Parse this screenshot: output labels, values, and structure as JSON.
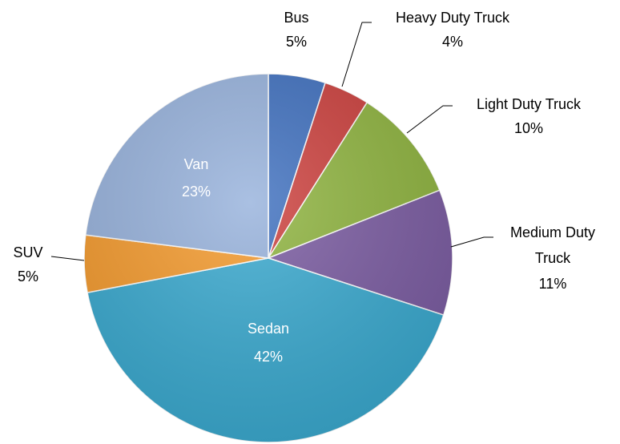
{
  "chart_data": {
    "type": "pie",
    "categories": [
      "Bus",
      "Heavy Duty Truck",
      "Light Duty Truck",
      "Medium Duty Truck",
      "Sedan",
      "SUV",
      "Van"
    ],
    "values": [
      5,
      4,
      10,
      11,
      42,
      5,
      23
    ],
    "value_labels": [
      "5%",
      "4%",
      "10%",
      "11%",
      "42%",
      "5%",
      "23%"
    ],
    "colors": [
      "#3f70bf",
      "#cc403d",
      "#8fb43f",
      "#7b5ca2",
      "#3aaad0",
      "#f59b2e",
      "#97b2dc"
    ]
  }
}
